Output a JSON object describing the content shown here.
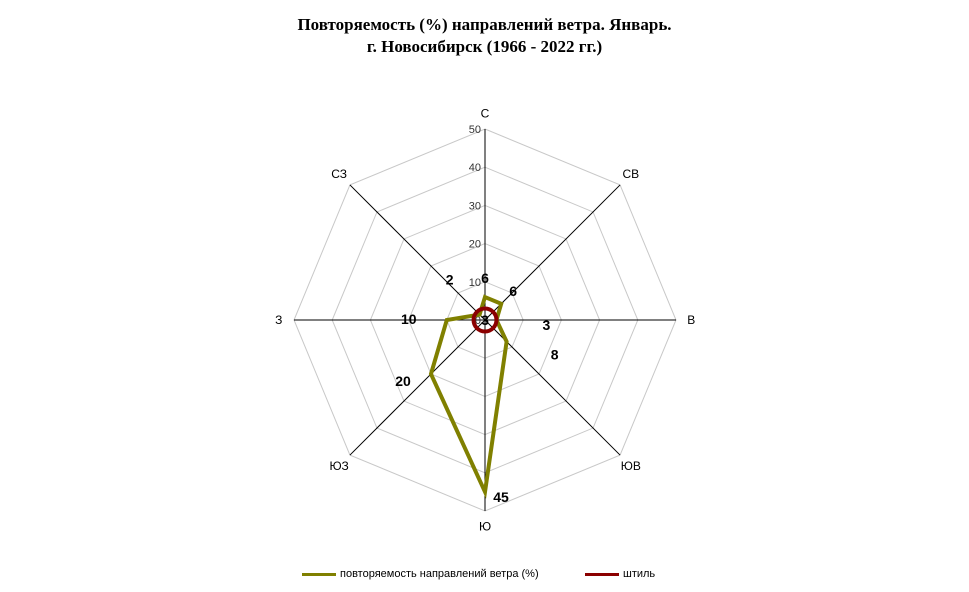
{
  "chart_data": {
    "type": "radar",
    "title_line1": "Повторяемость (%) направлений ветра. Январь.",
    "title_line2": "г. Новосибирск (1966 - 2022 гг.)",
    "categories": [
      "С",
      "СВ",
      "В",
      "ЮВ",
      "Ю",
      "ЮЗ",
      "З",
      "СЗ"
    ],
    "rlim": [
      0,
      50
    ],
    "r_ticks": [
      0,
      10,
      20,
      30,
      40,
      50
    ],
    "series": [
      {
        "name": "повторяемость направлений ветра (%)",
        "values": [
          6,
          6,
          3,
          8,
          45,
          20,
          10,
          2
        ],
        "data_labels": [
          "6",
          "6",
          "3",
          "8",
          "45",
          "20",
          "10",
          "2"
        ],
        "color": "#808000"
      },
      {
        "name": "штиль",
        "value": 3,
        "data_label": "3",
        "color": "#8B0000"
      }
    ],
    "grid": true,
    "legend_position": "bottom"
  }
}
